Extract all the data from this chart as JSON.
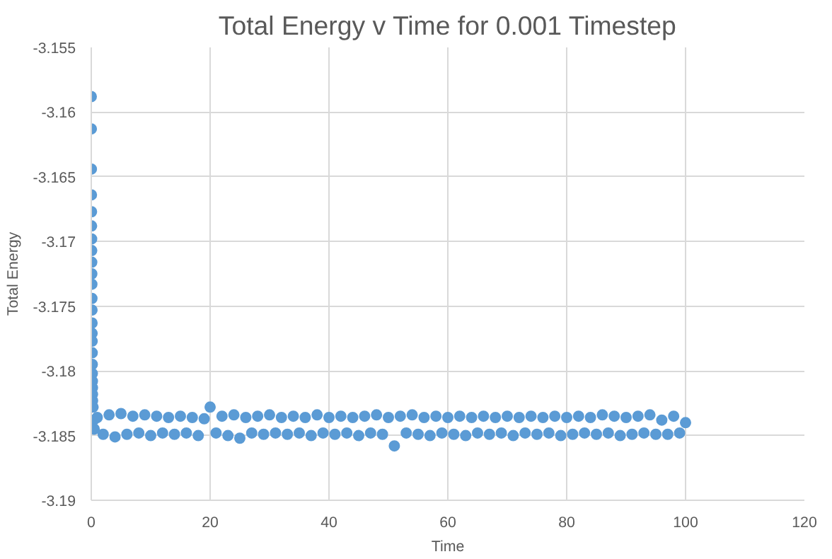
{
  "chart_data": {
    "type": "scatter",
    "title": "Total Energy v Time for 0.001 Timestep",
    "xlabel": "Time",
    "ylabel": "Total Energy",
    "xlim": [
      0,
      120
    ],
    "xticks": [
      0,
      20,
      40,
      60,
      80,
      100,
      120
    ],
    "ylim": [
      -3.19,
      -3.155
    ],
    "yticks": [
      -3.19,
      -3.185,
      -3.18,
      -3.175,
      -3.17,
      -3.165,
      -3.16,
      -3.155
    ],
    "grid": true,
    "marker": "circle",
    "series": [
      {
        "color": "#5b9bd5",
        "x": [
          0,
          0.01,
          0.02,
          0.03,
          0.04,
          0.05,
          0.06,
          0.07,
          0.08,
          0.09,
          0.1,
          0.11,
          0.12,
          0.13,
          0.14,
          0.15,
          0.16,
          0.17,
          0.18,
          0.19,
          0.2,
          0.21,
          0.22,
          0.3,
          0.4,
          0.5,
          1,
          2,
          3,
          4,
          5,
          6,
          7,
          8,
          9,
          10,
          11,
          12,
          13,
          14,
          15,
          16,
          17,
          18,
          19,
          20,
          21,
          22,
          23,
          24,
          25,
          26,
          27,
          28,
          29,
          30,
          31,
          32,
          33,
          34,
          35,
          36,
          37,
          38,
          39,
          40,
          41,
          42,
          43,
          44,
          45,
          46,
          47,
          48,
          49,
          50,
          51,
          52,
          53,
          54,
          55,
          56,
          57,
          58,
          59,
          60,
          61,
          62,
          63,
          64,
          65,
          66,
          67,
          68,
          69,
          70,
          71,
          72,
          73,
          74,
          75,
          76,
          77,
          78,
          79,
          80,
          81,
          82,
          83,
          84,
          85,
          86,
          87,
          88,
          89,
          90,
          91,
          92,
          93,
          94,
          95,
          96,
          97,
          98,
          99,
          100
        ],
        "values": [
          -3.1588,
          -3.1613,
          -3.1644,
          -3.1664,
          -3.1677,
          -3.1688,
          -3.1698,
          -3.1707,
          -3.1716,
          -3.1725,
          -3.1733,
          -3.1744,
          -3.1753,
          -3.1763,
          -3.1771,
          -3.1777,
          -3.1786,
          -3.1795,
          -3.1802,
          -3.1808,
          -3.1813,
          -3.1818,
          -3.1823,
          -3.1828,
          -3.1838,
          -3.1845,
          -3.1836,
          -3.1849,
          -3.1834,
          -3.1851,
          -3.1833,
          -3.1849,
          -3.1835,
          -3.1848,
          -3.1834,
          -3.185,
          -3.1835,
          -3.1848,
          -3.1836,
          -3.1849,
          -3.1835,
          -3.1848,
          -3.1836,
          -3.185,
          -3.1837,
          -3.1828,
          -3.1848,
          -3.1835,
          -3.185,
          -3.1834,
          -3.1852,
          -3.1836,
          -3.1848,
          -3.1835,
          -3.1849,
          -3.1834,
          -3.1848,
          -3.1836,
          -3.1849,
          -3.1835,
          -3.1848,
          -3.1836,
          -3.185,
          -3.1834,
          -3.1848,
          -3.1836,
          -3.1849,
          -3.1835,
          -3.1848,
          -3.1836,
          -3.185,
          -3.1835,
          -3.1848,
          -3.1834,
          -3.1849,
          -3.1836,
          -3.1858,
          -3.1835,
          -3.1848,
          -3.1834,
          -3.1849,
          -3.1836,
          -3.185,
          -3.1835,
          -3.1848,
          -3.1836,
          -3.1849,
          -3.1835,
          -3.185,
          -3.1836,
          -3.1848,
          -3.1835,
          -3.1849,
          -3.1836,
          -3.1848,
          -3.1835,
          -3.185,
          -3.1836,
          -3.1848,
          -3.1835,
          -3.1849,
          -3.1836,
          -3.1848,
          -3.1835,
          -3.185,
          -3.1836,
          -3.1849,
          -3.1835,
          -3.1848,
          -3.1836,
          -3.1849,
          -3.1834,
          -3.1848,
          -3.1835,
          -3.185,
          -3.1836,
          -3.1849,
          -3.1835,
          -3.1848,
          -3.1834,
          -3.1849,
          -3.1838,
          -3.1849,
          -3.1835,
          -3.1848,
          -3.184
        ]
      }
    ]
  }
}
